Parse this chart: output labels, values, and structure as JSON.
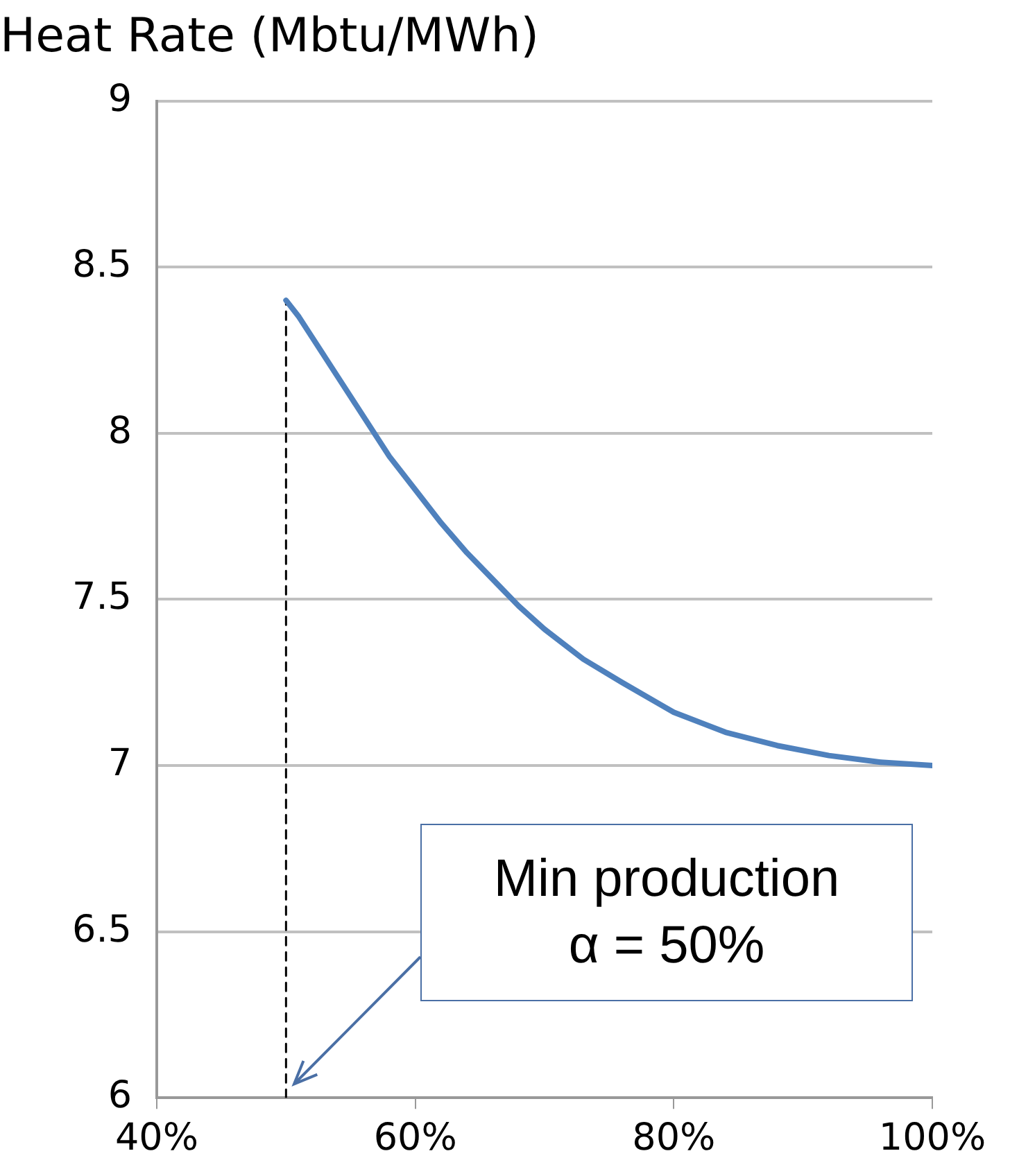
{
  "chart_data": {
    "type": "line",
    "title": "Heat Rate (Mbtu/MWh)",
    "xlim": [
      40,
      100
    ],
    "xticks": [
      {
        "value": 40,
        "label": "40%"
      },
      {
        "value": 60,
        "label": "60%"
      },
      {
        "value": 80,
        "label": "80%"
      },
      {
        "value": 100,
        "label": "100%"
      }
    ],
    "ylim": [
      6,
      9
    ],
    "yticks": [
      6,
      6.5,
      7,
      7.5,
      8,
      8.5,
      9
    ],
    "grid": "y",
    "legend": false,
    "marker": "none",
    "series": [
      {
        "color": "#4f81bd",
        "line_style": "solid",
        "x": [
          50,
          51,
          52,
          53,
          54,
          55,
          56,
          57,
          58,
          60,
          62,
          64,
          66,
          68,
          70,
          73,
          76,
          80,
          84,
          88,
          92,
          96,
          100
        ],
        "values": [
          8.4,
          8.35,
          8.29,
          8.23,
          8.17,
          8.11,
          8.05,
          7.99,
          7.93,
          7.83,
          7.73,
          7.64,
          7.56,
          7.48,
          7.41,
          7.32,
          7.25,
          7.16,
          7.1,
          7.06,
          7.03,
          7.01,
          7.0
        ]
      },
      {
        "type": "line",
        "color": "#000000",
        "line_style": "dashed",
        "x": [
          50,
          50
        ],
        "values": [
          6,
          8.4
        ]
      }
    ],
    "annotations": [
      "Min production\nα = 50%"
    ]
  }
}
